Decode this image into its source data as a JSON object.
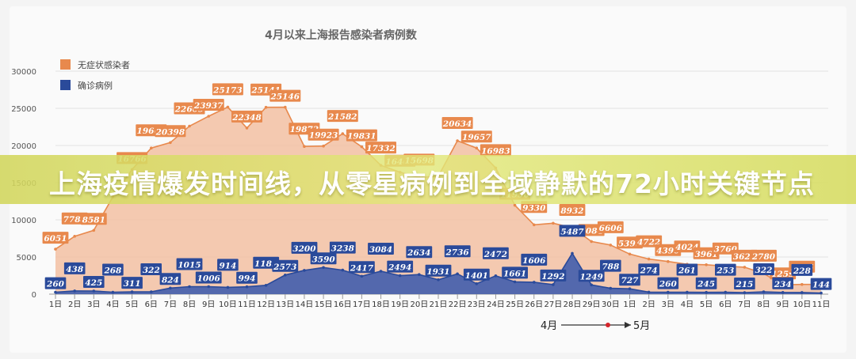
{
  "headline": "上海疫情爆发时间线，从零星病例到全域静默的72小时关键节点",
  "chart_data": {
    "type": "area",
    "title": "4月以来上海报告感染者病例数",
    "legend_position": "top-left",
    "ylim": [
      0,
      30000
    ],
    "yticks": [
      0,
      5000,
      10000,
      15000,
      20000,
      25000,
      30000
    ],
    "categories": [
      "1日",
      "2日",
      "3日",
      "4日",
      "5日",
      "6日",
      "7日",
      "8日",
      "9日",
      "10日",
      "11日",
      "12日",
      "13日",
      "14日",
      "15日",
      "16日",
      "17日",
      "18日",
      "19日",
      "20日",
      "21日",
      "22日",
      "23日",
      "24日",
      "25日",
      "26日",
      "27日",
      "28日",
      "29日",
      "30日",
      "1日",
      "2日",
      "3日",
      "4日",
      "5日",
      "6日",
      "7日",
      "8日",
      "9日",
      "10日",
      "11日"
    ],
    "month_markers": {
      "from": "4月",
      "to": "5月"
    },
    "colors": {
      "asymptomatic": "#e8894d",
      "confirmed": "#2a4a9a",
      "asymptomatic_fill": "#f2c0a2",
      "confirmed_fill": "#4a63ad"
    },
    "series": [
      {
        "name": "无症状感染者",
        "values": [
          6051,
          7788,
          8581,
          13086,
          16766,
          19660,
          20398,
          22609,
          23937,
          25173,
          22348,
          25141,
          25146,
          19872,
          19923,
          21582,
          19831,
          17332,
          16407,
          15698,
          15861,
          20634,
          19657,
          16983,
          11956,
          9330,
          9545,
          8932,
          7084,
          6606,
          5395,
          4722,
          4390,
          4024,
          3961,
          3760,
          3625,
          2780,
          1259,
          1305,
          1305
        ]
      },
      {
        "name": "确诊病例",
        "values": [
          260,
          438,
          425,
          268,
          311,
          322,
          824,
          1015,
          1006,
          914,
          994,
          1189,
          2573,
          3200,
          3590,
          3238,
          2417,
          3084,
          2494,
          2634,
          1931,
          2736,
          1401,
          2472,
          1661,
          1606,
          1292,
          5487,
          1249,
          788,
          727,
          274,
          260,
          261,
          245,
          253,
          215,
          322,
          234,
          228,
          144
        ]
      }
    ],
    "data_labels": {
      "asymptomatic": [
        "6051",
        "7788",
        "8581",
        "",
        "16766",
        "19660",
        "20398",
        "22609",
        "23937",
        "25173",
        "22348",
        "25141",
        "25146",
        "19872",
        "19923",
        "21582",
        "19831",
        "17332",
        "16407",
        "15698",
        "",
        "20634",
        "19657",
        "16983",
        "11956",
        "9330",
        "",
        "8932",
        "7084",
        "6606",
        "5395",
        "4722",
        "4390",
        "4024",
        "3961",
        "3760",
        "3625",
        "2780",
        "1259",
        "1305",
        ""
      ],
      "confirmed": [
        "260",
        "438",
        "425",
        "268",
        "311",
        "322",
        "824",
        "1015",
        "1006",
        "914",
        "994",
        "1189",
        "2573",
        "3200",
        "3590",
        "3238",
        "2417",
        "3084",
        "2494",
        "2634",
        "1931",
        "2736",
        "1401",
        "2472",
        "1661",
        "1606",
        "1292",
        "5487",
        "1249",
        "788",
        "727",
        "274",
        "260",
        "261",
        "245",
        "253",
        "215",
        "322",
        "234",
        "228",
        "144"
      ]
    }
  }
}
